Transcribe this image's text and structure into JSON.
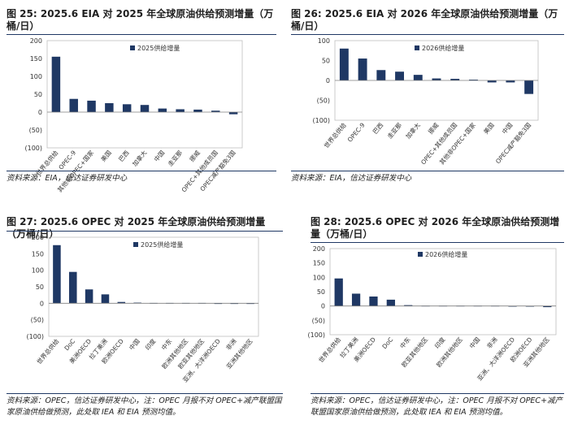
{
  "chart_data": [
    {
      "id": "fig25",
      "type": "bar",
      "title": "图 25:  2025.6 EIA 对 2025 年全球原油供给预测增量（万桶/日）",
      "source": "资料来源：EIA，信达证券研发中心",
      "legend": "2025供给增量",
      "legend_position": "top-right",
      "ylim": [
        -100,
        200
      ],
      "yticks": [
        200,
        150,
        100,
        50,
        0,
        -50,
        -100
      ],
      "categories": [
        "世界总供给",
        "OPEC-9",
        "其他非OPEC+国家",
        "美国",
        "巴西",
        "加拿大",
        "中国",
        "圭亚那",
        "挪威",
        "OPEC+其他成员国",
        "OPEC减产豁免3国"
      ],
      "series": [
        {
          "name": "2025供给增量",
          "values": [
            155,
            37,
            32,
            25,
            22,
            20,
            10,
            8,
            7,
            4,
            -6
          ]
        }
      ],
      "bar_color": "#1f3864"
    },
    {
      "id": "fig26",
      "type": "bar",
      "title": "图 26:  2025.6 EIA 对 2026 年全球原油供给预测增量（万桶/日）",
      "source": "资料来源：EIA，信达证券研发中心",
      "legend": "2026供给增量",
      "legend_position": "top-right",
      "ylim": [
        -100,
        100
      ],
      "yticks": [
        100,
        50,
        0,
        -50,
        -100
      ],
      "categories": [
        "世界总供给",
        "OPEC-9",
        "巴西",
        "圭亚那",
        "加拿大",
        "挪威",
        "OPEC+其他成员国",
        "其他非OPEC+国家",
        "美国",
        "中国",
        "OPEC减产豁免3国"
      ],
      "series": [
        {
          "name": "2026供给增量",
          "values": [
            80,
            55,
            26,
            22,
            14,
            5,
            4,
            2,
            -5,
            -5,
            -34
          ]
        }
      ],
      "bar_color": "#1f3864"
    },
    {
      "id": "fig27",
      "type": "bar",
      "title": "图 27:  2025.6 OPEC 对 2025 年全球原油供给预测增量（万桶/日）",
      "source": "资料来源：OPEC，信达证券研发中心，注：OPEC 月报不对 OPEC+减产联盟国家原油供给做预测，此处取 IEA 和 EIA 预测均值。",
      "legend": "2025供给增量",
      "legend_position": "top-right",
      "ylim": [
        -100,
        200
      ],
      "yticks": [
        200,
        150,
        100,
        50,
        0,
        -50,
        -100
      ],
      "categories": [
        "世界总供给",
        "DoC",
        "美洲OECD",
        "拉丁美洲",
        "欧洲OECD",
        "中国",
        "印度",
        "中东",
        "欧洲其他地区",
        "欧亚其他地区",
        "亚洲、大洋洲OECD",
        "非洲",
        "亚洲其他地区"
      ],
      "series": [
        {
          "name": "2025供给增量",
          "values": [
            176,
            95,
            42,
            27,
            4,
            2,
            1,
            1,
            1,
            1,
            -1,
            -1,
            -2
          ]
        }
      ],
      "bar_color": "#1f3864"
    },
    {
      "id": "fig28",
      "type": "bar",
      "title": "图 28:  2025.6 OPEC 对 2026 年全球原油供给预测增量（万桶/日）",
      "source": "资料来源：OPEC，信达证券研发中心，注：OPEC 月报不对 OPEC+减产联盟国家原油供给做预测，此处取 IEA 和 EIA 预测均值。",
      "legend": "2026供给增量",
      "legend_position": "top-right",
      "ylim": [
        -100,
        200
      ],
      "yticks": [
        200,
        150,
        100,
        50,
        0,
        -50,
        -100
      ],
      "categories": [
        "世界总供给",
        "拉丁美洲",
        "美洲OECD",
        "DoC",
        "中东",
        "欧亚其他地区",
        "印度",
        "欧洲其他地区",
        "中国",
        "非洲",
        "亚洲、大洋洲OECD",
        "欧洲OECD",
        "亚洲其他地区"
      ],
      "series": [
        {
          "name": "2026供给增量",
          "values": [
            96,
            43,
            33,
            22,
            3,
            1,
            1,
            1,
            1,
            1,
            -1,
            -2,
            -4
          ]
        }
      ],
      "bar_color": "#1f3864"
    }
  ]
}
